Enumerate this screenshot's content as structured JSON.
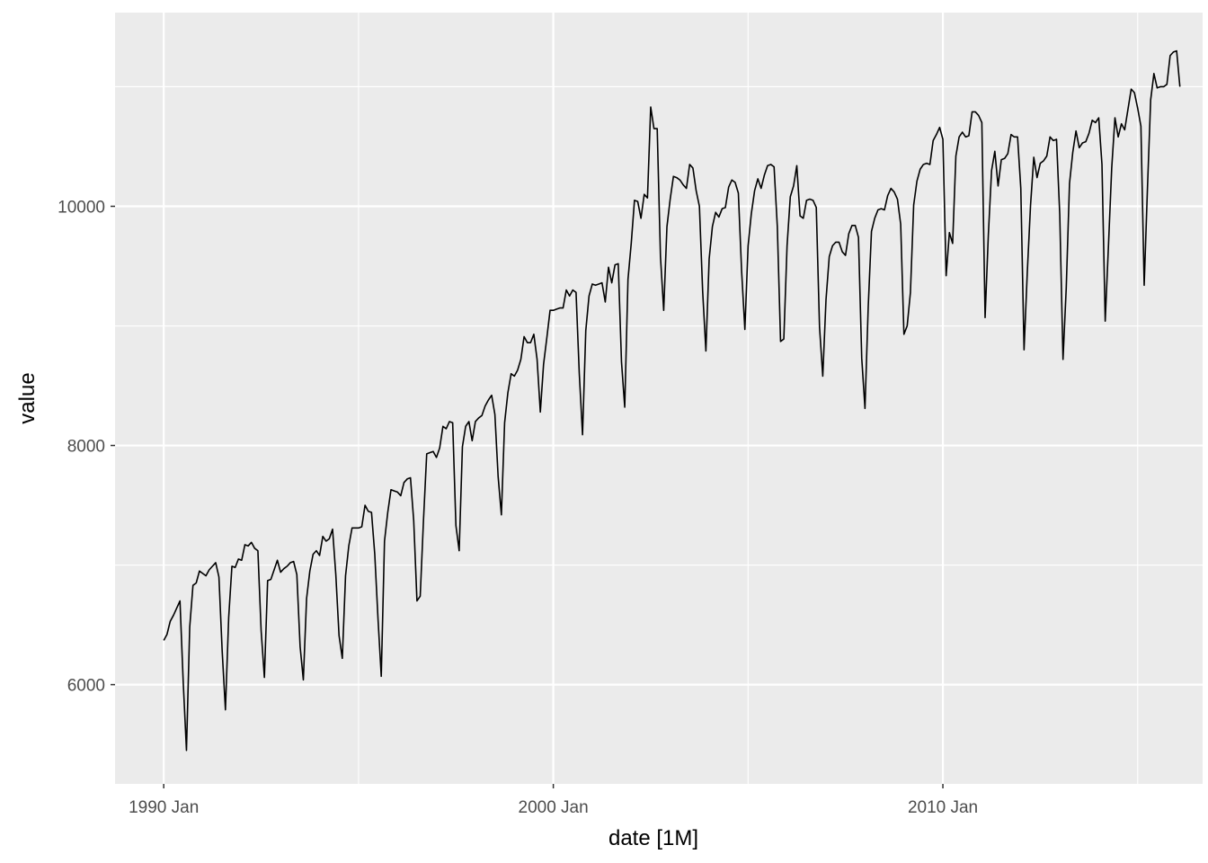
{
  "chart_data": {
    "type": "line",
    "title": "",
    "xlabel": "date [1M]",
    "ylabel": "value",
    "x_ticks": [
      "1990 Jan",
      "2000 Jan",
      "2010 Jan"
    ],
    "y_ticks": [
      "6000",
      "8000",
      "10000"
    ],
    "xlim": [
      "1988 Oct",
      "2016 Sep"
    ],
    "ylim": [
      5170,
      11620
    ],
    "grid": true,
    "legend": "none",
    "background": "#ebebeb",
    "grid_color": "#ffffff",
    "line_color": "#000000",
    "x_start": "1990 Jan",
    "x_step": "1 month",
    "series": [
      {
        "values": [
          6370,
          6420,
          6530,
          6580,
          6640,
          6700,
          6020,
          5450,
          6480,
          6830,
          6850,
          6950,
          6930,
          6910,
          6960,
          6990,
          7020,
          6900,
          6280,
          5790,
          6560,
          6990,
          6980,
          7050,
          7040,
          7170,
          7160,
          7190,
          7140,
          7120,
          6450,
          6060,
          6870,
          6880,
          6960,
          7040,
          6940,
          6970,
          6990,
          7020,
          7030,
          6920,
          6320,
          6040,
          6720,
          6950,
          7090,
          7120,
          7080,
          7240,
          7200,
          7220,
          7300,
          6920,
          6410,
          6220,
          6910,
          7160,
          7310,
          7310,
          7310,
          7320,
          7500,
          7450,
          7440,
          7090,
          6550,
          6070,
          7200,
          7440,
          7630,
          7620,
          7610,
          7580,
          7690,
          7720,
          7730,
          7370,
          6700,
          6740,
          7370,
          7930,
          7940,
          7950,
          7900,
          7980,
          8160,
          8140,
          8200,
          8190,
          7330,
          7120,
          7990,
          8160,
          8200,
          8040,
          8200,
          8230,
          8250,
          8330,
          8380,
          8420,
          8260,
          7740,
          7420,
          8190,
          8440,
          8600,
          8580,
          8630,
          8720,
          8910,
          8860,
          8860,
          8930,
          8720,
          8280,
          8680,
          8900,
          9130,
          9130,
          9140,
          9150,
          9150,
          9300,
          9250,
          9300,
          9280,
          8600,
          8090,
          8960,
          9250,
          9350,
          9340,
          9350,
          9360,
          9200,
          9490,
          9360,
          9510,
          9520,
          8700,
          8320,
          9390,
          9690,
          10050,
          10040,
          9900,
          10100,
          10070,
          10830,
          10650,
          10650,
          9580,
          9130,
          9830,
          10060,
          10250,
          10240,
          10220,
          10180,
          10150,
          10350,
          10320,
          10130,
          10000,
          9290,
          8790,
          9560,
          9830,
          9950,
          9910,
          9980,
          9990,
          10160,
          10220,
          10200,
          10110,
          9460,
          8970,
          9670,
          9940,
          10130,
          10230,
          10150,
          10260,
          10340,
          10350,
          10330,
          9830,
          8870,
          8890,
          9670,
          10080,
          10170,
          10340,
          9920,
          9900,
          10050,
          10060,
          10050,
          9990,
          8990,
          8580,
          9220,
          9580,
          9670,
          9700,
          9700,
          9620,
          9590,
          9770,
          9840,
          9840,
          9740,
          8730,
          8310,
          9160,
          9790,
          9900,
          9970,
          9980,
          9970,
          10090,
          10150,
          10120,
          10060,
          9850,
          8930,
          9000,
          9280,
          10010,
          10210,
          10310,
          10350,
          10360,
          10350,
          10550,
          10600,
          10660,
          10560,
          9420,
          9780,
          9690,
          10420,
          10580,
          10620,
          10580,
          10590,
          10790,
          10790,
          10760,
          10700,
          9070,
          9760,
          10300,
          10460,
          10170,
          10390,
          10400,
          10440,
          10600,
          10580,
          10580,
          10150,
          8800,
          9450,
          10010,
          10410,
          10240,
          10360,
          10380,
          10420,
          10580,
          10550,
          10560,
          9930,
          8720,
          9320,
          10190,
          10450,
          10630,
          10490,
          10530,
          10540,
          10610,
          10720,
          10700,
          10740,
          10350,
          9040,
          9670,
          10320,
          10740,
          10580,
          10690,
          10640,
          10810,
          10980,
          10950,
          10820,
          10670,
          9340,
          10140,
          10890,
          11110,
          10990,
          11000,
          11000,
          11020,
          11260,
          11290,
          11300,
          11000
        ]
      }
    ]
  }
}
